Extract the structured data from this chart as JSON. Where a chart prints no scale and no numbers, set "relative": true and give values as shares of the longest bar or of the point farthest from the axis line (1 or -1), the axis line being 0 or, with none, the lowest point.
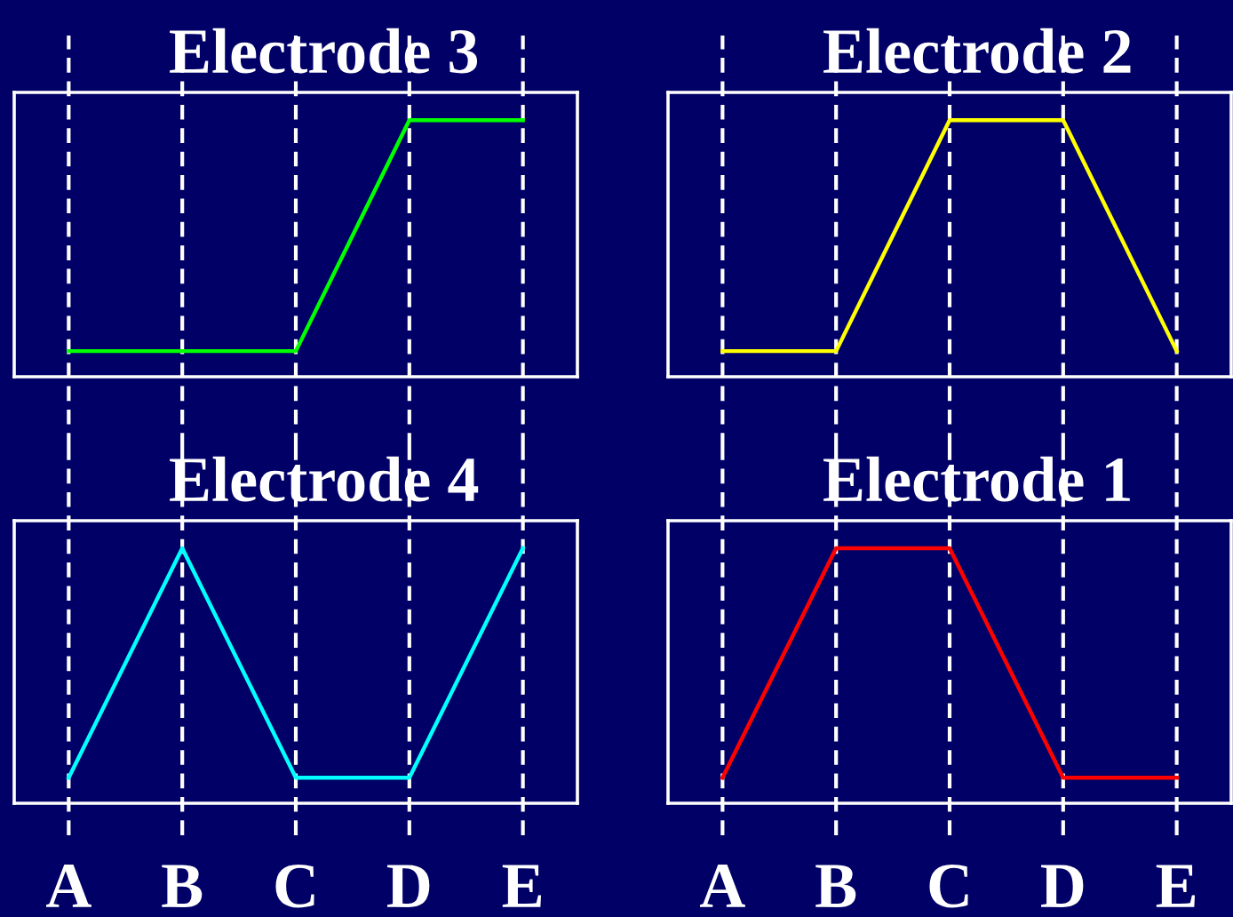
{
  "chart_data": [
    {
      "type": "line",
      "title": "Electrode 3",
      "categories": [
        null,
        null,
        null,
        null,
        null
      ],
      "series": [
        {
          "color": "#00ff00",
          "values": [
            0.1,
            0.1,
            0.1,
            1,
            1
          ]
        }
      ],
      "relative": true,
      "grid": "x",
      "tick_labels": false
    },
    {
      "type": "line",
      "title": "Electrode 2",
      "categories": [
        null,
        null,
        null,
        null,
        null
      ],
      "series": [
        {
          "color": "#ffff00",
          "values": [
            0.1,
            0.1,
            1,
            1,
            0.1
          ]
        }
      ],
      "relative": true,
      "grid": "x",
      "tick_labels": false
    },
    {
      "type": "line",
      "title": "Electrode 4",
      "categories": [
        "A",
        "B",
        "C",
        "D",
        "E"
      ],
      "series": [
        {
          "color": "#00ffff",
          "values": [
            0.1,
            1,
            0.1,
            0.1,
            1
          ]
        }
      ],
      "relative": true,
      "grid": "x",
      "tick_labels": "x"
    },
    {
      "type": "line",
      "title": "Electrode 1",
      "categories": [
        "A",
        "B",
        "C",
        "D",
        "E"
      ],
      "series": [
        {
          "color": "#ff0000",
          "values": [
            0.1,
            1,
            1,
            0.1,
            0.1
          ]
        }
      ],
      "relative": true,
      "grid": "x",
      "tick_labels": "x"
    }
  ]
}
